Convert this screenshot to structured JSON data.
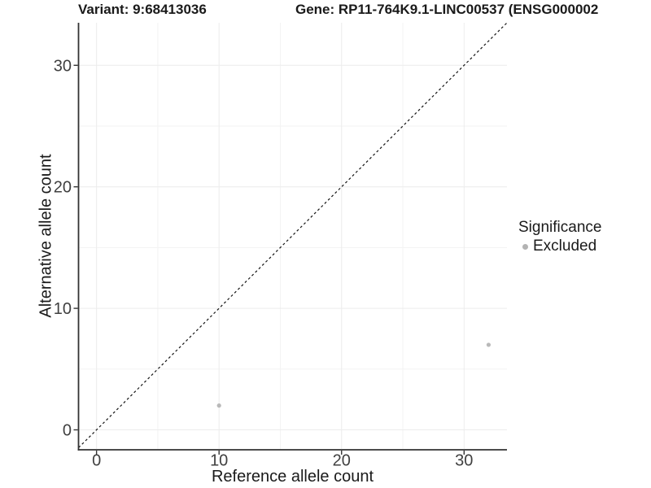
{
  "header": {
    "variant_title": "Variant: 9:68413036",
    "gene_title": "Gene: RP11-764K9.1-LINC00537 (ENSG000002"
  },
  "chart_data": {
    "type": "scatter",
    "title": "Variant: 9:68413036",
    "x": {
      "label": "Reference allele count",
      "ticks": [
        0,
        10,
        20,
        30
      ],
      "minor_ticks": [
        5,
        15,
        25
      ],
      "range": [
        -1.47,
        33.5
      ]
    },
    "y": {
      "label": "Alternative allele count",
      "ticks": [
        0,
        10,
        20,
        30
      ],
      "minor_ticks": [
        5,
        15,
        25
      ],
      "range": [
        -1.64,
        33.5
      ]
    },
    "series": [
      {
        "name": "Excluded",
        "color": "#b9b9b9",
        "points": [
          {
            "x": 10,
            "y": 2
          },
          {
            "x": 32,
            "y": 7
          }
        ]
      }
    ],
    "identity_line": {
      "style": "dashed",
      "color": "#141414"
    },
    "legend": {
      "title": "Significance",
      "position": "right",
      "items": [
        {
          "label": "Excluded",
          "color": "#b3b3b3"
        }
      ]
    },
    "grid": {
      "major_color": "#ececec",
      "minor_color": "#f3f3f3",
      "background": "#ffffff"
    },
    "axis_color": "#333333",
    "tick_label_color": "#404040"
  }
}
